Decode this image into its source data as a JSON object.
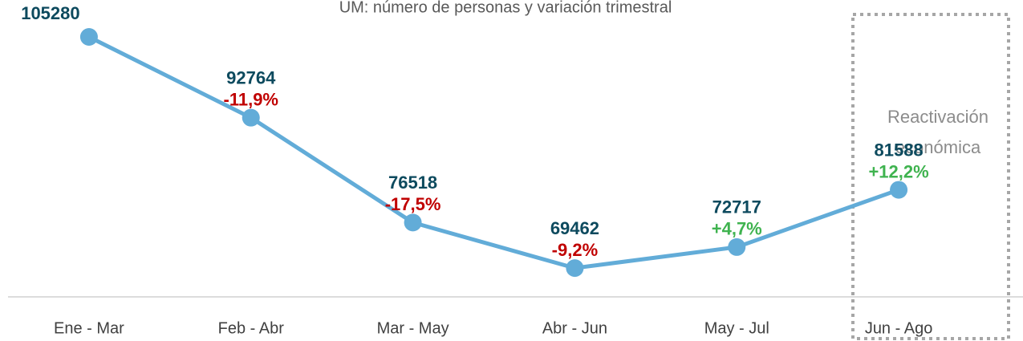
{
  "chart_data": {
    "type": "line",
    "subtitle": "UM: número  de personas y variación trimestral",
    "categories": [
      "Ene - Mar",
      "Feb - Abr",
      "Mar - May",
      "Abr - Jun",
      "May - Jul",
      "Jun - Ago"
    ],
    "series": [
      {
        "color": "#62acd8",
        "values": [
          105280,
          92764,
          76518,
          69462,
          72717,
          81588
        ]
      }
    ],
    "changes": [
      null,
      -11.9,
      -17.5,
      -9.2,
      4.7,
      12.2
    ],
    "change_labels": [
      null,
      "-11,9%",
      "-17,5%",
      "-9,2%",
      "+4,7%",
      "+12,2%"
    ],
    "annotation": [
      "Reactivación",
      "económica"
    ],
    "ylim": [
      65000,
      111000
    ]
  }
}
